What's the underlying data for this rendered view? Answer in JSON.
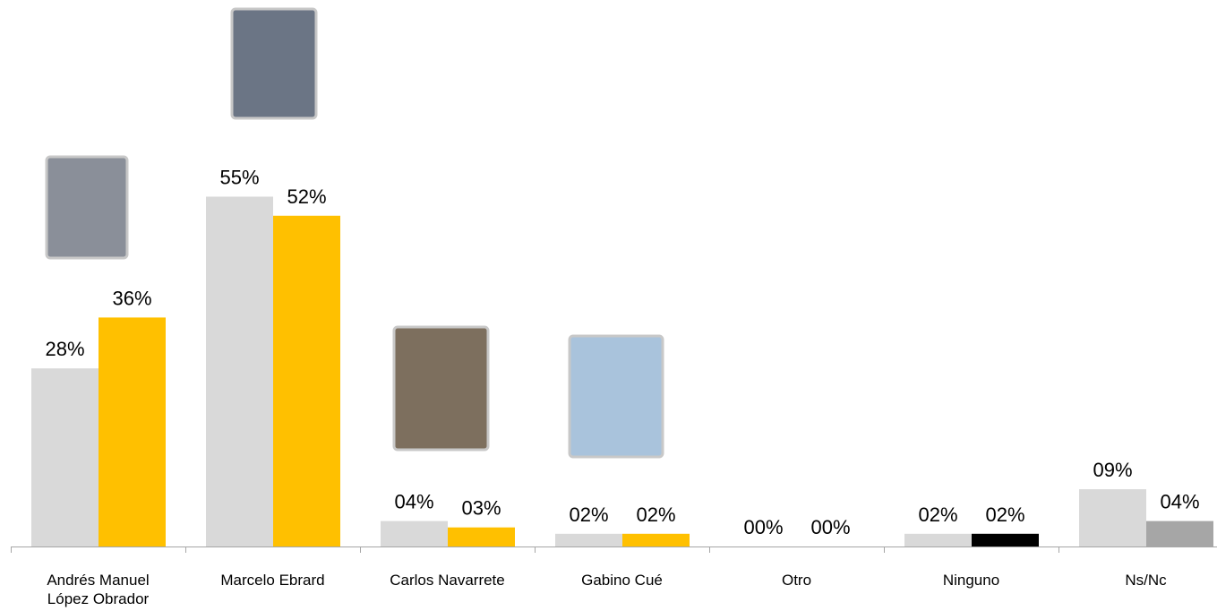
{
  "chart_data": {
    "type": "bar",
    "categories": [
      "Andrés Manuel\nLópez Obrador",
      "Marcelo Ebrard",
      "Carlos Navarrete",
      "Gabino Cué",
      "Otro",
      "Ninguno",
      "Ns/Nc"
    ],
    "series": [
      {
        "color": "#d9d9d9",
        "values": [
          28,
          55,
          4,
          2,
          0,
          2,
          9
        ],
        "value_labels": [
          "28%",
          "55%",
          "04%",
          "02%",
          "00%",
          "02%",
          "09%"
        ]
      },
      {
        "color": "#ffc000",
        "colors": [
          "#ffc000",
          "#ffc000",
          "#ffc000",
          "#ffc000",
          "#ffc000",
          "#000000",
          "#a6a6a6"
        ],
        "values": [
          36,
          52,
          3,
          2,
          0,
          2,
          4
        ],
        "value_labels": [
          "36%",
          "52%",
          "03%",
          "02%",
          "00%",
          "02%",
          "04%"
        ]
      }
    ]
  }
}
